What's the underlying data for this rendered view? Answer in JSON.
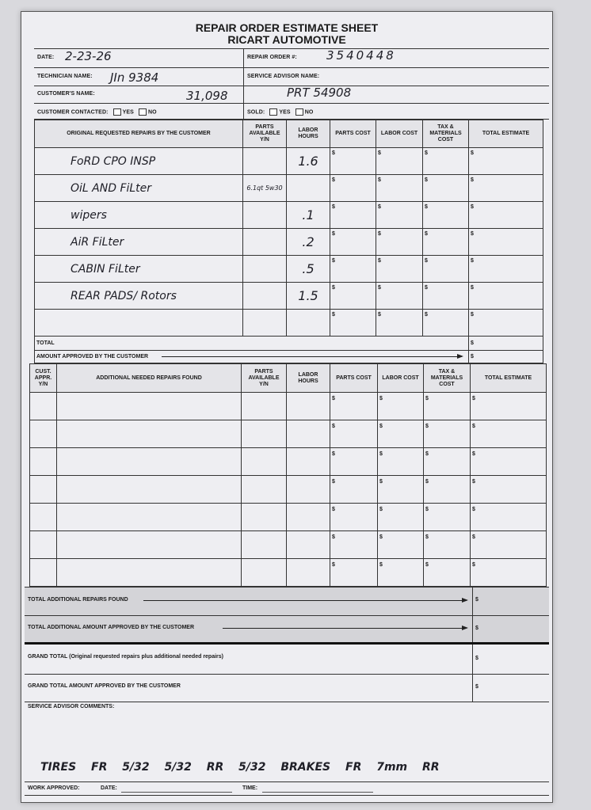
{
  "form": {
    "title": "REPAIR ORDER ESTIMATE SHEET",
    "subtitle": "RICART AUTOMOTIVE"
  },
  "fields": {
    "date_label": "DATE:",
    "date_value": "2-23-26",
    "repair_order_label": "REPAIR ORDER #:",
    "repair_order_value": "3540448",
    "technician_label": "TECHNICIAN NAME:",
    "technician_value": "JIn 9384",
    "service_advisor_label": "SERVICE ADVISOR NAME:",
    "customer_label": "CUSTOMER'S NAME:",
    "customer_value": "31,098",
    "customer_value_2": "PRT 54908",
    "contacted_label": "CUSTOMER CONTACTED:",
    "sold_label": "SOLD:",
    "yes": "YES",
    "no": "NO"
  },
  "original": {
    "headers": [
      "ORIGINAL REQUESTED REPAIRS BY THE CUSTOMER",
      "PARTS AVAILABLE Y/N",
      "LABOR HOURS",
      "PARTS COST",
      "LABOR COST",
      "TAX & MATERIALS COST",
      "TOTAL ESTIMATE"
    ],
    "rows": [
      {
        "desc": "FoRD CPO INSP",
        "parts": "",
        "hours": "1.6"
      },
      {
        "desc": "OiL AND FiLter",
        "parts": "6.1qt 5w30",
        "hours": ""
      },
      {
        "desc": "wipers",
        "parts": "",
        "hours": ".1"
      },
      {
        "desc": "AiR FiLter",
        "parts": "",
        "hours": ".2"
      },
      {
        "desc": "CABIN FiLter",
        "parts": "",
        "hours": ".5"
      },
      {
        "desc": "REAR PADS/ Rotors",
        "parts": "",
        "hours": "1.5"
      },
      {
        "desc": "",
        "parts": "",
        "hours": ""
      }
    ],
    "currency": "$",
    "total_label": "TOTAL",
    "approved_label": "AMOUNT APPROVED BY THE CUSTOMER"
  },
  "additional": {
    "headers": [
      "CUST. APPR. Y/N",
      "ADDITIONAL NEEDED REPAIRS FOUND",
      "PARTS AVAILABLE Y/N",
      "LABOR HOURS",
      "PARTS COST",
      "LABOR COST",
      "TAX & MATERIALS COST",
      "TOTAL ESTIMATE"
    ],
    "row_count": 7
  },
  "summary": {
    "total_additional": "TOTAL ADDITIONAL REPAIRS FOUND",
    "total_additional_approved": "TOTAL ADDITIONAL AMOUNT APPROVED BY THE CUSTOMER",
    "grand_total": "GRAND TOTAL (Original requested repairs plus additional needed repairs)",
    "grand_total_approved": "GRAND TOTAL AMOUNT APPROVED BY THE CUSTOMER",
    "comments_label": "SERVICE ADVISOR COMMENTS:",
    "comments_value": "TIRES FR 5/32 5/32 RR 5/32 BRAKES FR 7mm RR",
    "work_approved": "WORK APPROVED:",
    "date": "DATE:",
    "time": "TIME:"
  }
}
